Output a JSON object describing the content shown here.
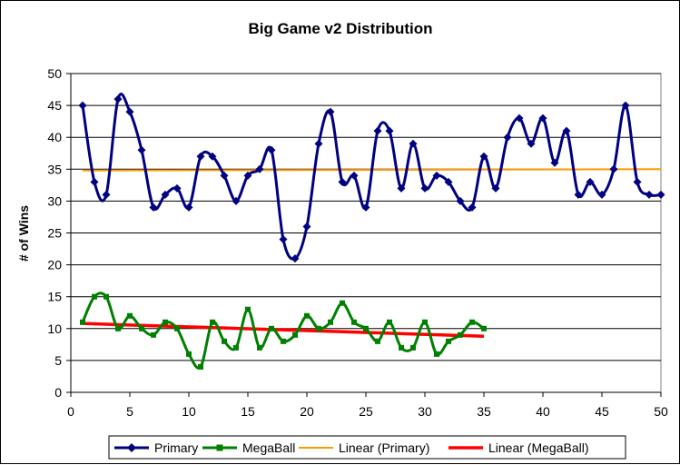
{
  "chart_data": {
    "type": "line",
    "title": "Big Game v2 Distribution",
    "xlabel": "",
    "ylabel": "# of Wins",
    "xlim": [
      0,
      50
    ],
    "ylim": [
      0,
      50
    ],
    "x_ticks": [
      0,
      5,
      10,
      15,
      20,
      25,
      30,
      35,
      40,
      45,
      50
    ],
    "y_ticks": [
      0,
      5,
      10,
      15,
      20,
      25,
      30,
      35,
      40,
      45,
      50
    ],
    "grid": "horizontal",
    "legend_position": "bottom",
    "series": [
      {
        "name": "Primary",
        "color": "#000080",
        "marker": "diamond",
        "x": [
          1,
          2,
          3,
          4,
          5,
          6,
          7,
          8,
          9,
          10,
          11,
          12,
          13,
          14,
          15,
          16,
          17,
          18,
          19,
          20,
          21,
          22,
          23,
          24,
          25,
          26,
          27,
          28,
          29,
          30,
          31,
          32,
          33,
          34,
          35,
          36,
          37,
          38,
          39,
          40,
          41,
          42,
          43,
          44,
          45,
          46,
          47,
          48,
          49,
          50
        ],
        "values": [
          45,
          33,
          31,
          46,
          44,
          38,
          29,
          31,
          32,
          29,
          37,
          37,
          34,
          30,
          34,
          35,
          38,
          24,
          21,
          26,
          39,
          44,
          33,
          34,
          29,
          41,
          41,
          32,
          39,
          32,
          34,
          33,
          30,
          29,
          37,
          32,
          40,
          43,
          39,
          43,
          36,
          41,
          31,
          33,
          31,
          35,
          45,
          33,
          31,
          31
        ]
      },
      {
        "name": "MegaBall",
        "color": "#008000",
        "marker": "square",
        "x": [
          1,
          2,
          3,
          4,
          5,
          6,
          7,
          8,
          9,
          10,
          11,
          12,
          13,
          14,
          15,
          16,
          17,
          18,
          19,
          20,
          21,
          22,
          23,
          24,
          25,
          26,
          27,
          28,
          29,
          30,
          31,
          32,
          33,
          34,
          35
        ],
        "values": [
          11,
          15,
          15,
          10,
          12,
          10,
          9,
          11,
          10,
          6,
          4,
          11,
          8,
          7,
          13,
          7,
          10,
          8,
          9,
          12,
          10,
          11,
          14,
          11,
          10,
          8,
          11,
          7,
          7,
          11,
          6,
          8,
          9,
          11,
          10
        ]
      },
      {
        "name": "Linear (Primary)",
        "color": "#FF9900",
        "type": "trendline",
        "x": [
          1,
          50
        ],
        "values": [
          34.8,
          35.0
        ]
      },
      {
        "name": "Linear (MegaBall)",
        "color": "#FF0000",
        "type": "trendline",
        "x": [
          1,
          35
        ],
        "values": [
          10.8,
          8.8
        ]
      }
    ]
  }
}
